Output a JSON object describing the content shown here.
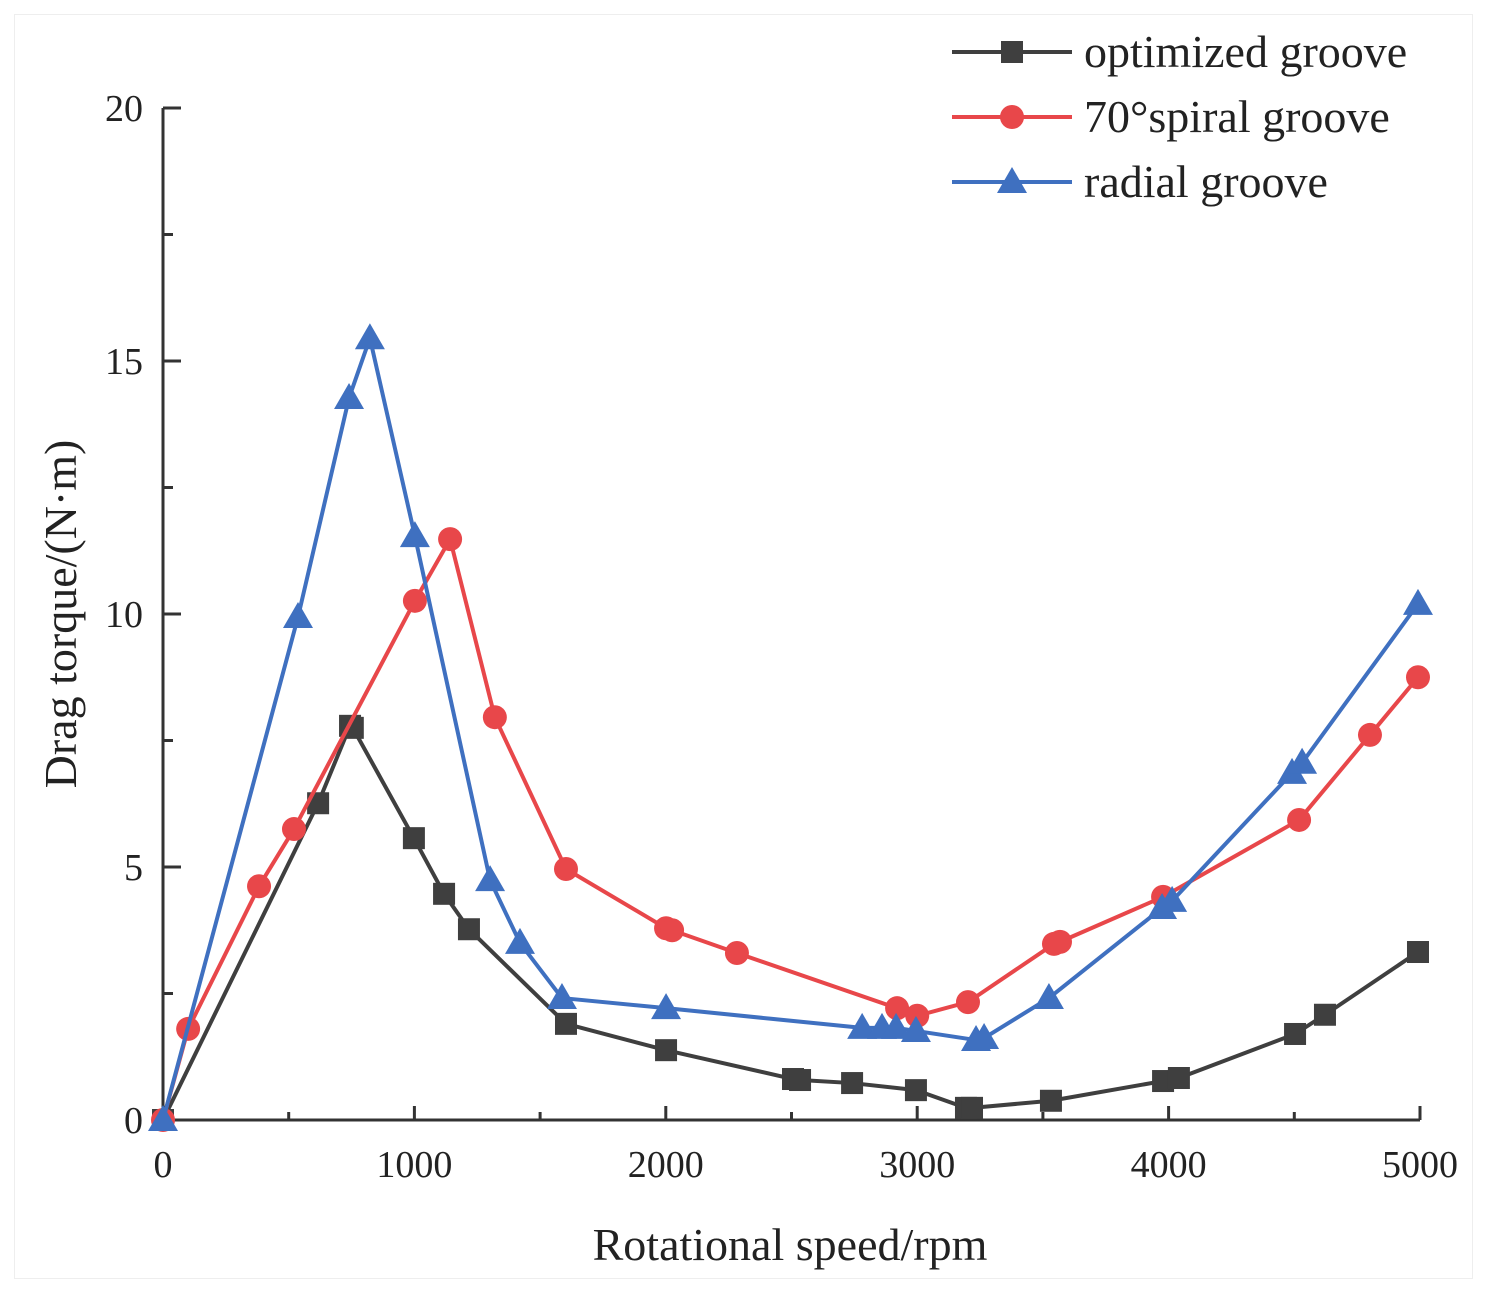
{
  "chart_data": {
    "type": "line",
    "title": "",
    "xlabel": "Rotational speed/rpm",
    "ylabel": "Drag torque/(N·m)",
    "xlim": [
      0,
      5000
    ],
    "ylim": [
      0,
      20
    ],
    "xticks": [
      0,
      1000,
      2000,
      3000,
      4000,
      5000
    ],
    "xtick_labels": [
      "0",
      "1000",
      "2000",
      "3000",
      "4000",
      "5000"
    ],
    "yticks": [
      0,
      5,
      10,
      15,
      20
    ],
    "ytick_labels": [
      "0",
      "5",
      "10",
      "15",
      "20"
    ],
    "grid": false,
    "legend_position": "top-right",
    "series": [
      {
        "name": "optimized groove",
        "color": "#3f3f3f",
        "marker": "square",
        "x": [
          0,
          617,
          744,
          755,
          998,
          1118,
          1217,
          1603,
          2001,
          2506,
          2534,
          2741,
          2995,
          3194,
          3218,
          3532,
          3978,
          4041,
          4503,
          4622,
          4992
        ],
        "y": [
          0,
          6.26,
          7.79,
          7.75,
          5.57,
          4.47,
          3.77,
          1.9,
          1.38,
          0.81,
          0.79,
          0.73,
          0.59,
          0.24,
          0.24,
          0.38,
          0.77,
          0.83,
          1.7,
          2.08,
          3.32
        ]
      },
      {
        "name": "70°spiral groove",
        "color": "#e8474a",
        "marker": "circle",
        "x": [
          0,
          100,
          382,
          521,
          1002,
          1142,
          1320,
          1603,
          2001,
          2025,
          2283,
          2920,
          3000,
          3202,
          3544,
          3568,
          3978,
          4519,
          4801,
          4992
        ],
        "y": [
          0,
          1.8,
          4.62,
          5.75,
          10.26,
          11.48,
          7.96,
          4.96,
          3.79,
          3.75,
          3.3,
          2.21,
          2.06,
          2.33,
          3.48,
          3.52,
          4.41,
          5.93,
          7.61,
          8.75
        ]
      },
      {
        "name": "radial groove",
        "color": "#3f70c0",
        "marker": "triangle",
        "x": [
          0,
          537,
          740,
          823,
          1002,
          1301,
          1420,
          1587,
          2001,
          2781,
          2860,
          2916,
          2995,
          3234,
          3266,
          3524,
          3974,
          4014,
          4491,
          4531,
          4992
        ],
        "y": [
          0,
          9.94,
          14.27,
          15.45,
          11.54,
          4.74,
          3.5,
          2.41,
          2.21,
          1.82,
          1.82,
          1.82,
          1.76,
          1.58,
          1.62,
          2.41,
          4.19,
          4.33,
          6.86,
          7.06,
          10.2
        ]
      }
    ]
  }
}
